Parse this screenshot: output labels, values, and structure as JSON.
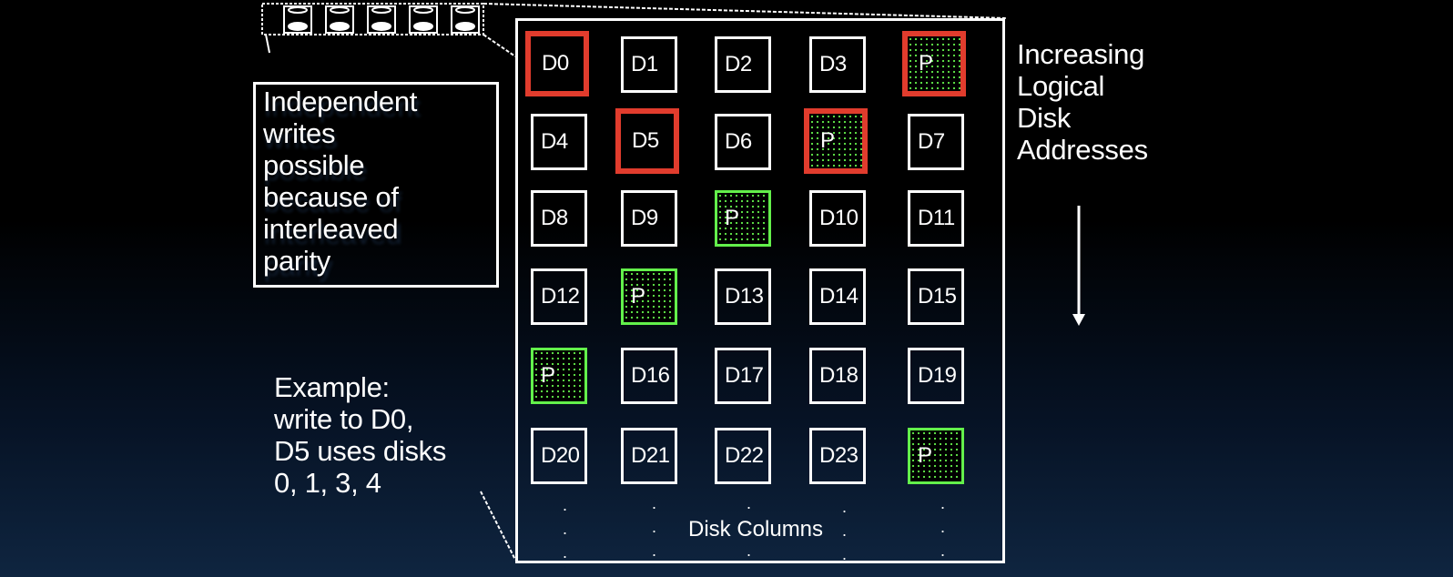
{
  "note": {
    "text": "Independent\nwrites\npossible\nbecause of\ninterleaved\nparity"
  },
  "example": {
    "text": "Example:\nwrite to D0,\nD5 uses disks\n0, 1, 3, 4"
  },
  "axis": {
    "text": "Increasing\nLogical\nDisk\nAddresses"
  },
  "footer": {
    "label": "Disk Columns"
  },
  "colors": {
    "written_border": "#e13c2d",
    "parity": "#63f04b",
    "frame": "#ffffff"
  },
  "grid": {
    "rows": [
      [
        {
          "label": "D0",
          "parity": false,
          "written": true
        },
        {
          "label": "D1",
          "parity": false,
          "written": false
        },
        {
          "label": "D2",
          "parity": false,
          "written": false
        },
        {
          "label": "D3",
          "parity": false,
          "written": false
        },
        {
          "label": "P",
          "parity": true,
          "written": true
        }
      ],
      [
        {
          "label": "D4",
          "parity": false,
          "written": false
        },
        {
          "label": "D5",
          "parity": false,
          "written": true
        },
        {
          "label": "D6",
          "parity": false,
          "written": false
        },
        {
          "label": "P",
          "parity": true,
          "written": true
        },
        {
          "label": "D7",
          "parity": false,
          "written": false
        }
      ],
      [
        {
          "label": "D8",
          "parity": false,
          "written": false
        },
        {
          "label": "D9",
          "parity": false,
          "written": false
        },
        {
          "label": "P",
          "parity": true,
          "written": false
        },
        {
          "label": "D10",
          "parity": false,
          "written": false
        },
        {
          "label": "D11",
          "parity": false,
          "written": false
        }
      ],
      [
        {
          "label": "D12",
          "parity": false,
          "written": false
        },
        {
          "label": "P",
          "parity": true,
          "written": false
        },
        {
          "label": "D13",
          "parity": false,
          "written": false
        },
        {
          "label": "D14",
          "parity": false,
          "written": false
        },
        {
          "label": "D15",
          "parity": false,
          "written": false
        }
      ],
      [
        {
          "label": "P",
          "parity": true,
          "written": false
        },
        {
          "label": "D16",
          "parity": false,
          "written": false
        },
        {
          "label": "D17",
          "parity": false,
          "written": false
        },
        {
          "label": "D18",
          "parity": false,
          "written": false
        },
        {
          "label": "D19",
          "parity": false,
          "written": false
        }
      ],
      [
        {
          "label": "D20",
          "parity": false,
          "written": false
        },
        {
          "label": "D21",
          "parity": false,
          "written": false
        },
        {
          "label": "D22",
          "parity": false,
          "written": false
        },
        {
          "label": "D23",
          "parity": false,
          "written": false
        },
        {
          "label": "P",
          "parity": true,
          "written": false
        }
      ]
    ]
  }
}
